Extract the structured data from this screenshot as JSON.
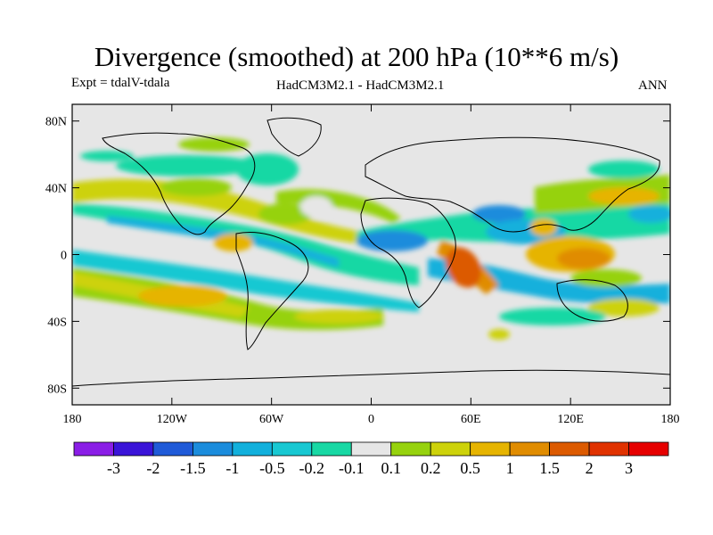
{
  "title": "Divergence (smoothed) at 200 hPa (10**6 m/s)",
  "subtitle_left": "Expt = tdalV-tdala",
  "subtitle_center": "HadCM3M2.1 - HadCM3M2.1",
  "subtitle_right": "ANN",
  "map": {
    "projection": "cylindrical equidistant",
    "lon_range": [
      -180,
      180
    ],
    "lat_range": [
      -90,
      90
    ],
    "lat_ticks": [
      {
        "value": 80,
        "label": "80N"
      },
      {
        "value": 40,
        "label": "40N"
      },
      {
        "value": 0,
        "label": "0"
      },
      {
        "value": -40,
        "label": "40S"
      },
      {
        "value": -80,
        "label": "80S"
      }
    ],
    "lon_ticks": [
      {
        "value": -180,
        "label": "180"
      },
      {
        "value": -120,
        "label": "120W"
      },
      {
        "value": -60,
        "label": "60W"
      },
      {
        "value": 0,
        "label": "0"
      },
      {
        "value": 60,
        "label": "60E"
      },
      {
        "value": 120,
        "label": "120E"
      },
      {
        "value": 180,
        "label": "180"
      }
    ],
    "background_color": "#e6e6e6"
  },
  "colorbar": {
    "levels": [
      "-3",
      "-2",
      "-1.5",
      "-1",
      "-0.5",
      "-0.2",
      "-0.1",
      "0.1",
      "0.2",
      "0.5",
      "1",
      "1.5",
      "2",
      "3"
    ],
    "colors": [
      "#8a1ee6",
      "#3a14d8",
      "#1f5ad8",
      "#1b8cdc",
      "#12b0dc",
      "#18c8d2",
      "#18d8a4",
      "#e6e6e6",
      "#96d20e",
      "#cdd20a",
      "#e6b400",
      "#e08c00",
      "#dc5a00",
      "#e03200",
      "#e60000"
    ]
  },
  "chart_data": {
    "type": "heatmap",
    "title": "Divergence (smoothed) at 200 hPa (10**6 m/s)",
    "variable": "divergence difference",
    "units": "10**6 m/s",
    "pressure_level_hPa": 200,
    "season": "ANN",
    "experiment": "tdalV-tdala",
    "regions": [
      {
        "center_lon": 40,
        "center_lat": -12,
        "value": 1.5
      },
      {
        "center_lon": 115,
        "center_lat": -8,
        "value": 1.5
      },
      {
        "center_lon": 90,
        "center_lat": 10,
        "value": -1
      },
      {
        "center_lon": 55,
        "center_lat": 20,
        "value": -0.5
      },
      {
        "center_lon": -50,
        "center_lat": 8,
        "value": -0.5
      },
      {
        "center_lon": 155,
        "center_lat": 28,
        "value": 1
      },
      {
        "center_lon": -140,
        "center_lat": -25,
        "value": 0.5
      },
      {
        "center_lon": -110,
        "center_lat": 38,
        "value": 0.5
      },
      {
        "center_lon": -25,
        "center_lat": -30,
        "value": 0.2
      }
    ]
  }
}
